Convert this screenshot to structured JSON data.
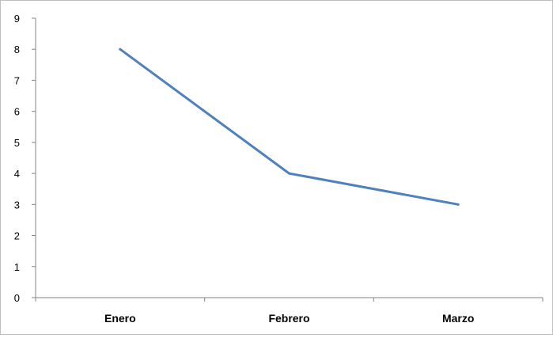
{
  "chart_data": {
    "type": "line",
    "categories": [
      "Enero",
      "Febrero",
      "Marzo"
    ],
    "series": [
      {
        "values": [
          8,
          4,
          3
        ]
      }
    ],
    "ylim": [
      0,
      9
    ],
    "yticks": [
      "0",
      "1",
      "2",
      "3",
      "4",
      "5",
      "6",
      "7",
      "8",
      "9"
    ],
    "grid": false,
    "legend": "none",
    "colors": {
      "line": "#4f81bd",
      "axis": "#868686"
    }
  }
}
